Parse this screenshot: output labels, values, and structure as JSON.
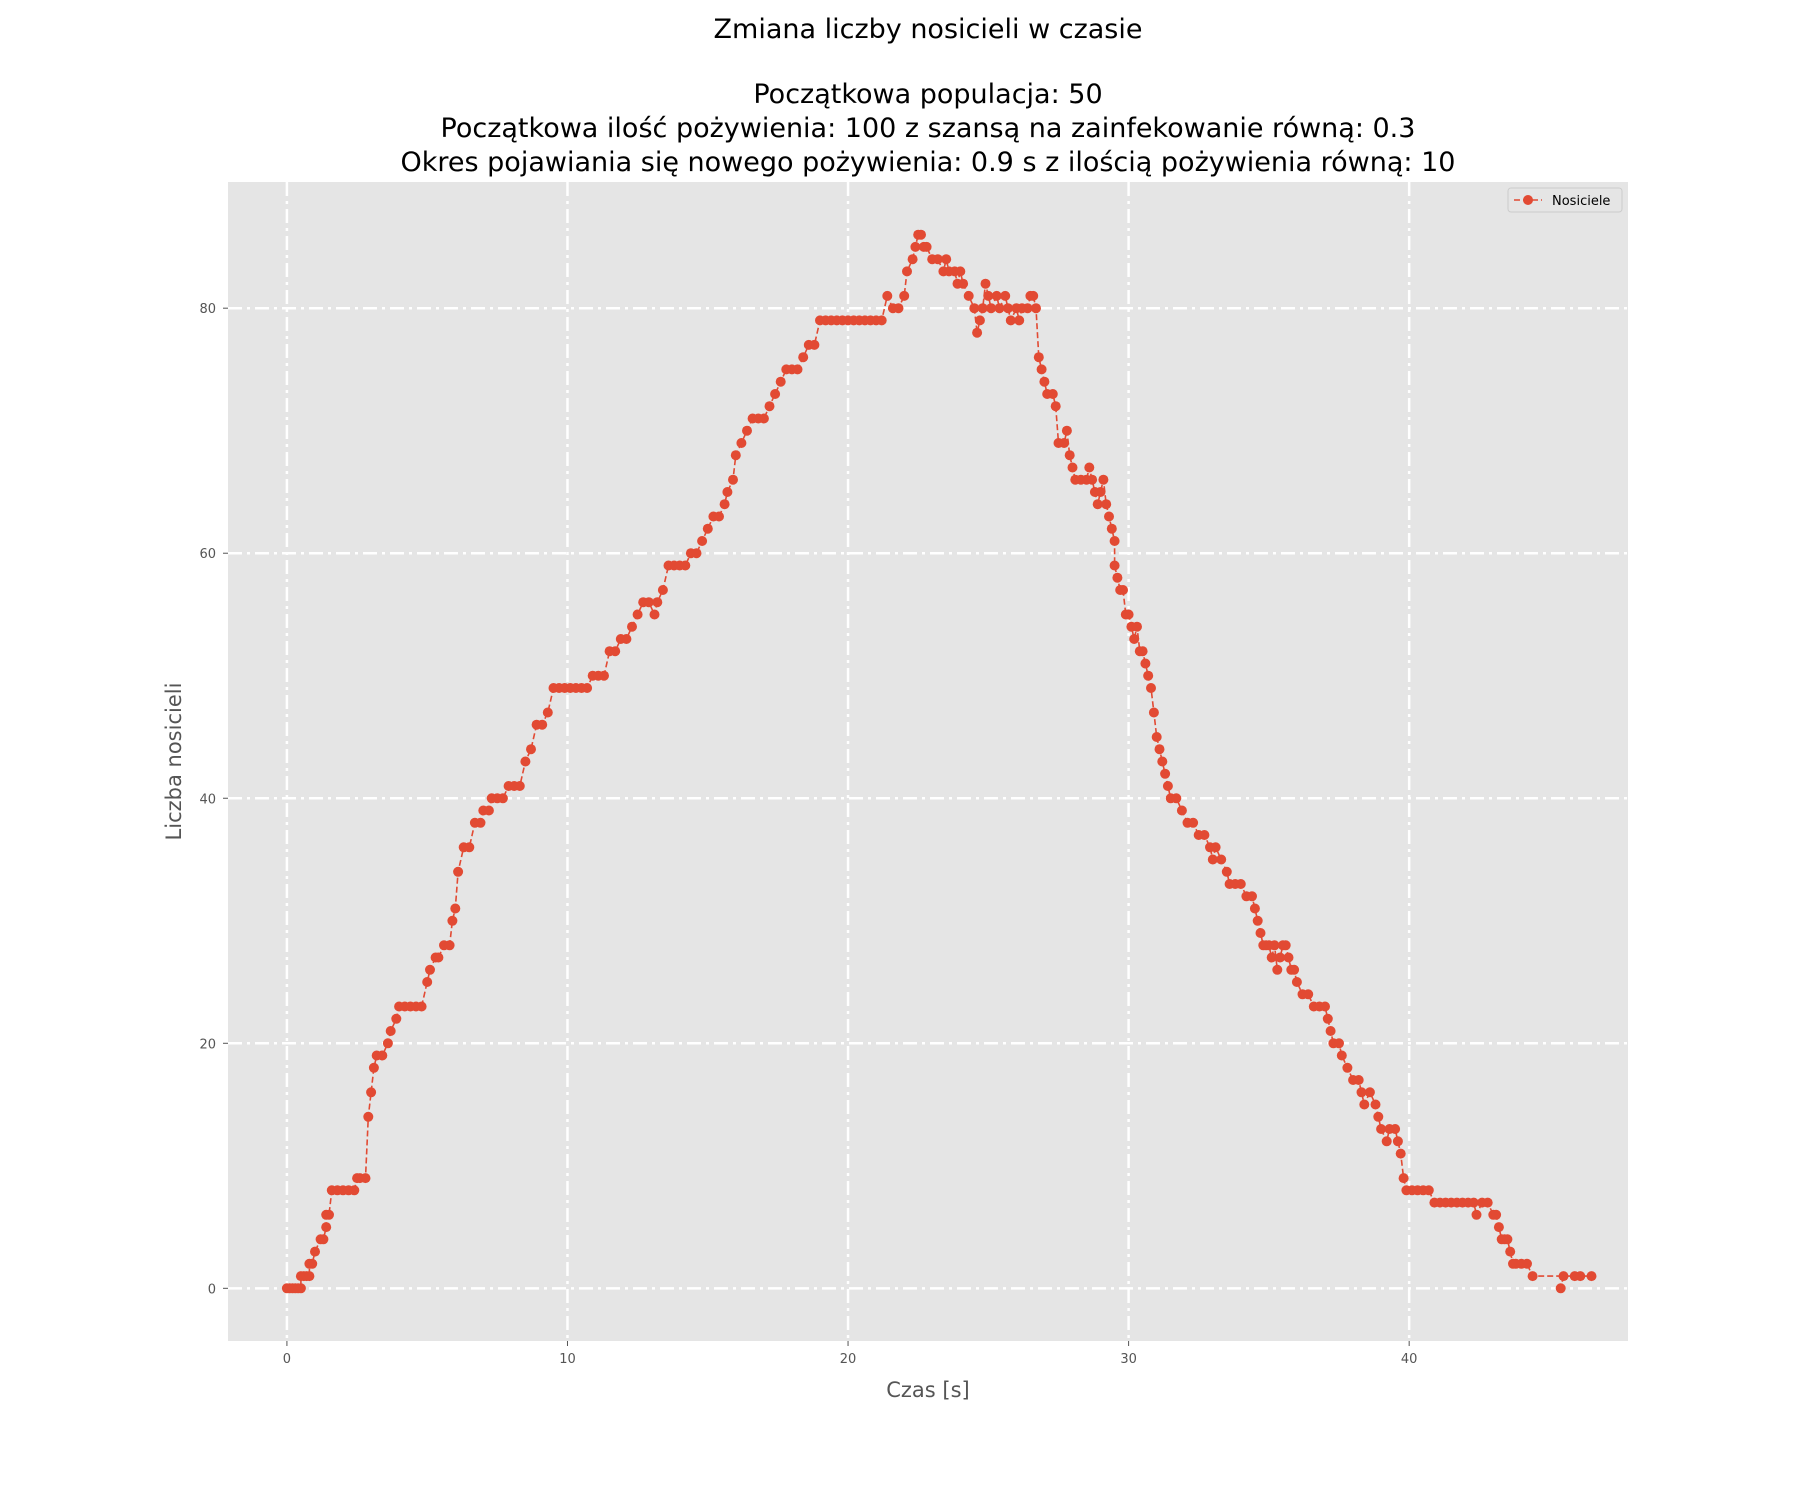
{
  "colors": {
    "plot_bg": "#e5e5e5",
    "grid": "#ffffff",
    "series": "#e24a33",
    "legend_bg": "#e5e5e5",
    "legend_border": "#cccccc"
  },
  "chart_data": {
    "type": "line",
    "title_lines": [
      "Zmiana liczby nosicieli w czasie",
      "",
      "Początkowa populacja: 50",
      "Początkowa ilość pożywienia: 100 z szansą na zainfekowanie równą: 0.3",
      "Okres pojawiania się nowego pożywienia: 0.9 s z ilością pożywienia równą: 10"
    ],
    "xlabel": "Czas [s]",
    "ylabel": "Liczba nosicieli",
    "xlim": [
      -2.1,
      47.8
    ],
    "ylim": [
      -4.3,
      90.3
    ],
    "xticks": [
      0,
      10,
      20,
      30,
      40
    ],
    "yticks": [
      0,
      20,
      40,
      60,
      80
    ],
    "grid": true,
    "grid_style": "dashdot",
    "legend_position": "top-right",
    "marker": "circle",
    "line_style": "dashed",
    "series": [
      {
        "name": "Nosiciele",
        "points": [
          [
            0,
            0
          ],
          [
            0.1,
            0
          ],
          [
            0.2,
            0
          ],
          [
            0.3,
            0
          ],
          [
            0.4,
            0
          ],
          [
            0.5,
            0
          ],
          [
            0.5,
            1
          ],
          [
            0.6,
            1
          ],
          [
            0.7,
            1
          ],
          [
            0.8,
            1
          ],
          [
            0.8,
            2
          ],
          [
            0.9,
            2
          ],
          [
            1.0,
            3
          ],
          [
            1.2,
            4
          ],
          [
            1.3,
            4
          ],
          [
            1.4,
            5
          ],
          [
            1.4,
            6
          ],
          [
            1.5,
            6
          ],
          [
            1.6,
            8
          ],
          [
            1.8,
            8
          ],
          [
            2.0,
            8
          ],
          [
            2.2,
            8
          ],
          [
            2.4,
            8
          ],
          [
            2.5,
            9
          ],
          [
            2.6,
            9
          ],
          [
            2.8,
            9
          ],
          [
            2.9,
            14
          ],
          [
            3.0,
            16
          ],
          [
            3.1,
            18
          ],
          [
            3.2,
            19
          ],
          [
            3.4,
            19
          ],
          [
            3.6,
            20
          ],
          [
            3.7,
            21
          ],
          [
            3.9,
            22
          ],
          [
            4.0,
            23
          ],
          [
            4.2,
            23
          ],
          [
            4.4,
            23
          ],
          [
            4.6,
            23
          ],
          [
            4.8,
            23
          ],
          [
            5.0,
            25
          ],
          [
            5.1,
            26
          ],
          [
            5.3,
            27
          ],
          [
            5.4,
            27
          ],
          [
            5.6,
            28
          ],
          [
            5.8,
            28
          ],
          [
            5.9,
            30
          ],
          [
            6.0,
            31
          ],
          [
            6.1,
            34
          ],
          [
            6.3,
            36
          ],
          [
            6.5,
            36
          ],
          [
            6.7,
            38
          ],
          [
            6.9,
            38
          ],
          [
            7.0,
            39
          ],
          [
            7.2,
            39
          ],
          [
            7.3,
            40
          ],
          [
            7.5,
            40
          ],
          [
            7.7,
            40
          ],
          [
            7.9,
            41
          ],
          [
            8.1,
            41
          ],
          [
            8.3,
            41
          ],
          [
            8.5,
            43
          ],
          [
            8.7,
            44
          ],
          [
            8.9,
            46
          ],
          [
            9.1,
            46
          ],
          [
            9.3,
            47
          ],
          [
            9.5,
            49
          ],
          [
            9.7,
            49
          ],
          [
            9.9,
            49
          ],
          [
            10.1,
            49
          ],
          [
            10.3,
            49
          ],
          [
            10.5,
            49
          ],
          [
            10.7,
            49
          ],
          [
            10.9,
            50
          ],
          [
            11.1,
            50
          ],
          [
            11.3,
            50
          ],
          [
            11.5,
            52
          ],
          [
            11.7,
            52
          ],
          [
            11.9,
            53
          ],
          [
            12.1,
            53
          ],
          [
            12.3,
            54
          ],
          [
            12.5,
            55
          ],
          [
            12.7,
            56
          ],
          [
            12.9,
            56
          ],
          [
            13.1,
            55
          ],
          [
            13.2,
            56
          ],
          [
            13.4,
            57
          ],
          [
            13.6,
            59
          ],
          [
            13.8,
            59
          ],
          [
            14.0,
            59
          ],
          [
            14.2,
            59
          ],
          [
            14.4,
            60
          ],
          [
            14.6,
            60
          ],
          [
            14.8,
            61
          ],
          [
            15.0,
            62
          ],
          [
            15.2,
            63
          ],
          [
            15.4,
            63
          ],
          [
            15.6,
            64
          ],
          [
            15.7,
            65
          ],
          [
            15.9,
            66
          ],
          [
            16.0,
            68
          ],
          [
            16.2,
            69
          ],
          [
            16.4,
            70
          ],
          [
            16.6,
            71
          ],
          [
            16.8,
            71
          ],
          [
            17.0,
            71
          ],
          [
            17.2,
            72
          ],
          [
            17.4,
            73
          ],
          [
            17.6,
            74
          ],
          [
            17.8,
            75
          ],
          [
            18.0,
            75
          ],
          [
            18.2,
            75
          ],
          [
            18.4,
            76
          ],
          [
            18.6,
            77
          ],
          [
            18.8,
            77
          ],
          [
            19.0,
            79
          ],
          [
            19.2,
            79
          ],
          [
            19.4,
            79
          ],
          [
            19.6,
            79
          ],
          [
            19.8,
            79
          ],
          [
            20.0,
            79
          ],
          [
            20.2,
            79
          ],
          [
            20.4,
            79
          ],
          [
            20.6,
            79
          ],
          [
            20.8,
            79
          ],
          [
            21.0,
            79
          ],
          [
            21.2,
            79
          ],
          [
            21.4,
            81
          ],
          [
            21.6,
            80
          ],
          [
            21.8,
            80
          ],
          [
            22.0,
            81
          ],
          [
            22.1,
            83
          ],
          [
            22.3,
            84
          ],
          [
            22.4,
            85
          ],
          [
            22.5,
            86
          ],
          [
            22.6,
            86
          ],
          [
            22.7,
            85
          ],
          [
            22.8,
            85
          ],
          [
            23.0,
            84
          ],
          [
            23.2,
            84
          ],
          [
            23.4,
            83
          ],
          [
            23.5,
            84
          ],
          [
            23.6,
            83
          ],
          [
            23.8,
            83
          ],
          [
            23.9,
            82
          ],
          [
            24.0,
            83
          ],
          [
            24.1,
            82
          ],
          [
            24.3,
            81
          ],
          [
            24.5,
            80
          ],
          [
            24.6,
            78
          ],
          [
            24.7,
            79
          ],
          [
            24.8,
            80
          ],
          [
            24.9,
            82
          ],
          [
            25.0,
            81
          ],
          [
            25.1,
            80
          ],
          [
            25.3,
            81
          ],
          [
            25.4,
            80
          ],
          [
            25.6,
            81
          ],
          [
            25.7,
            80
          ],
          [
            25.8,
            79
          ],
          [
            26.0,
            80
          ],
          [
            26.1,
            79
          ],
          [
            26.2,
            80
          ],
          [
            26.4,
            80
          ],
          [
            26.5,
            81
          ],
          [
            26.6,
            81
          ],
          [
            26.7,
            80
          ],
          [
            26.8,
            76
          ],
          [
            26.9,
            75
          ],
          [
            27.0,
            74
          ],
          [
            27.1,
            73
          ],
          [
            27.3,
            73
          ],
          [
            27.4,
            72
          ],
          [
            27.5,
            69
          ],
          [
            27.7,
            69
          ],
          [
            27.8,
            70
          ],
          [
            27.9,
            68
          ],
          [
            28.0,
            67
          ],
          [
            28.1,
            66
          ],
          [
            28.3,
            66
          ],
          [
            28.5,
            66
          ],
          [
            28.6,
            67
          ],
          [
            28.7,
            66
          ],
          [
            28.8,
            65
          ],
          [
            28.9,
            64
          ],
          [
            29.0,
            65
          ],
          [
            29.1,
            66
          ],
          [
            29.2,
            64
          ],
          [
            29.3,
            63
          ],
          [
            29.4,
            62
          ],
          [
            29.5,
            61
          ],
          [
            29.5,
            59
          ],
          [
            29.6,
            58
          ],
          [
            29.7,
            57
          ],
          [
            29.8,
            57
          ],
          [
            29.9,
            55
          ],
          [
            30.0,
            55
          ],
          [
            30.1,
            54
          ],
          [
            30.2,
            53
          ],
          [
            30.3,
            54
          ],
          [
            30.4,
            52
          ],
          [
            30.5,
            52
          ],
          [
            30.6,
            51
          ],
          [
            30.7,
            50
          ],
          [
            30.8,
            49
          ],
          [
            30.9,
            47
          ],
          [
            31.0,
            45
          ],
          [
            31.1,
            44
          ],
          [
            31.2,
            43
          ],
          [
            31.3,
            42
          ],
          [
            31.4,
            41
          ],
          [
            31.5,
            40
          ],
          [
            31.7,
            40
          ],
          [
            31.9,
            39
          ],
          [
            32.1,
            38
          ],
          [
            32.3,
            38
          ],
          [
            32.5,
            37
          ],
          [
            32.7,
            37
          ],
          [
            32.9,
            36
          ],
          [
            33.0,
            35
          ],
          [
            33.1,
            36
          ],
          [
            33.3,
            35
          ],
          [
            33.5,
            34
          ],
          [
            33.6,
            33
          ],
          [
            33.8,
            33
          ],
          [
            34.0,
            33
          ],
          [
            34.2,
            32
          ],
          [
            34.4,
            32
          ],
          [
            34.5,
            31
          ],
          [
            34.6,
            30
          ],
          [
            34.7,
            29
          ],
          [
            34.8,
            28
          ],
          [
            34.9,
            28
          ],
          [
            35.0,
            28
          ],
          [
            35.1,
            27
          ],
          [
            35.2,
            28
          ],
          [
            35.3,
            26
          ],
          [
            35.4,
            27
          ],
          [
            35.5,
            28
          ],
          [
            35.6,
            28
          ],
          [
            35.7,
            27
          ],
          [
            35.8,
            26
          ],
          [
            35.9,
            26
          ],
          [
            36.0,
            25
          ],
          [
            36.2,
            24
          ],
          [
            36.4,
            24
          ],
          [
            36.6,
            23
          ],
          [
            36.8,
            23
          ],
          [
            37.0,
            23
          ],
          [
            37.1,
            22
          ],
          [
            37.2,
            21
          ],
          [
            37.3,
            20
          ],
          [
            37.5,
            20
          ],
          [
            37.6,
            19
          ],
          [
            37.8,
            18
          ],
          [
            38.0,
            17
          ],
          [
            38.2,
            17
          ],
          [
            38.3,
            16
          ],
          [
            38.4,
            15
          ],
          [
            38.6,
            16
          ],
          [
            38.8,
            15
          ],
          [
            38.9,
            14
          ],
          [
            39.0,
            13
          ],
          [
            39.2,
            12
          ],
          [
            39.3,
            13
          ],
          [
            39.5,
            13
          ],
          [
            39.6,
            12
          ],
          [
            39.7,
            11
          ],
          [
            39.8,
            9
          ],
          [
            39.9,
            8
          ],
          [
            40.1,
            8
          ],
          [
            40.3,
            8
          ],
          [
            40.5,
            8
          ],
          [
            40.7,
            8
          ],
          [
            40.9,
            7
          ],
          [
            41.1,
            7
          ],
          [
            41.3,
            7
          ],
          [
            41.5,
            7
          ],
          [
            41.7,
            7
          ],
          [
            41.9,
            7
          ],
          [
            42.1,
            7
          ],
          [
            42.3,
            7
          ],
          [
            42.4,
            6
          ],
          [
            42.6,
            7
          ],
          [
            42.8,
            7
          ],
          [
            43.0,
            6
          ],
          [
            43.1,
            6
          ],
          [
            43.2,
            5
          ],
          [
            43.3,
            4
          ],
          [
            43.4,
            4
          ],
          [
            43.5,
            4
          ],
          [
            43.6,
            3
          ],
          [
            43.7,
            2
          ],
          [
            43.8,
            2
          ],
          [
            44.0,
            2
          ],
          [
            44.2,
            2
          ],
          [
            44.4,
            1
          ],
          [
            45.9,
            1
          ],
          [
            46.1,
            1
          ],
          [
            46.5,
            1
          ],
          [
            45.5,
            1
          ],
          [
            45.4,
            0
          ]
        ]
      }
    ]
  }
}
